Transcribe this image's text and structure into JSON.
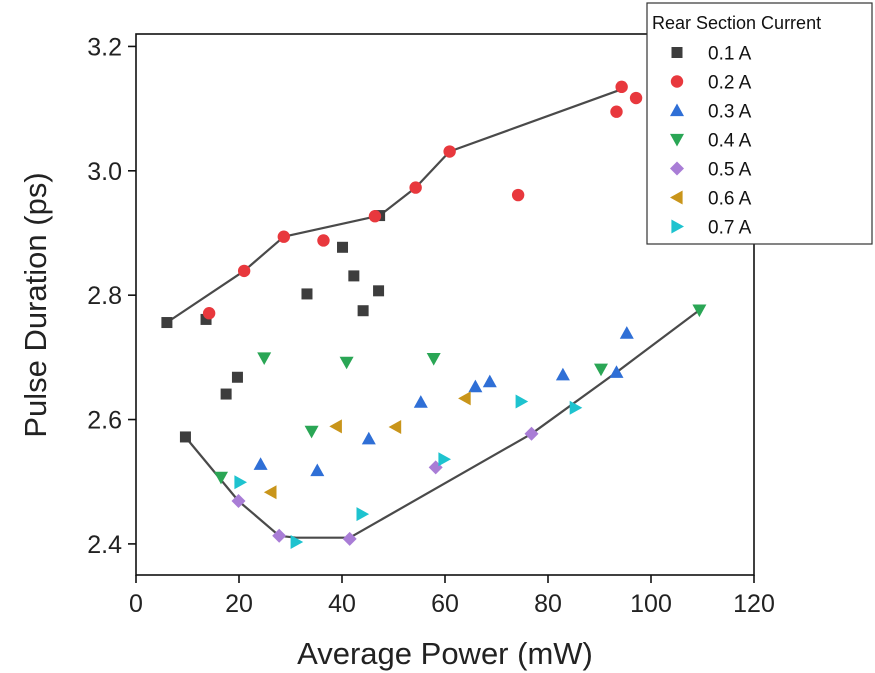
{
  "chart_data": {
    "type": "scatter",
    "xlabel": "Average Power (mW)",
    "ylabel": "Pulse Duration (ps)",
    "xlim": [
      0,
      120
    ],
    "ylim": [
      2.35,
      3.22
    ],
    "xticks": [
      0,
      20,
      40,
      60,
      80,
      100,
      120
    ],
    "xtick_labels": [
      "0",
      "20",
      "40",
      "60",
      "80",
      "100",
      "120"
    ],
    "yticks": [
      2.4,
      2.6,
      2.8,
      3.0,
      3.2
    ],
    "ytick_labels": [
      "2.4",
      "2.6",
      "2.8",
      "3.0",
      "3.2"
    ],
    "grid": false,
    "legend": {
      "title": "Rear Section Current",
      "placement": "top-right"
    },
    "series": [
      {
        "name": "0.1 A",
        "marker": "square",
        "color": "#3d3d3d",
        "points": [
          [
            6,
            2.756
          ],
          [
            13.6,
            2.761
          ],
          [
            17.5,
            2.641
          ],
          [
            19.7,
            2.668
          ],
          [
            9.6,
            2.572
          ],
          [
            33.2,
            2.802
          ],
          [
            40.1,
            2.877
          ],
          [
            42.3,
            2.831
          ],
          [
            44.1,
            2.775
          ],
          [
            47.1,
            2.807
          ],
          [
            47.3,
            2.928
          ]
        ]
      },
      {
        "name": "0.2 A",
        "marker": "circle",
        "color": "#e8383d",
        "points": [
          [
            14.2,
            2.771
          ],
          [
            21,
            2.839
          ],
          [
            28.7,
            2.894
          ],
          [
            36.4,
            2.888
          ],
          [
            46.4,
            2.927
          ],
          [
            54.3,
            2.973
          ],
          [
            60.9,
            3.031
          ],
          [
            74.2,
            2.961
          ],
          [
            93.3,
            3.095
          ],
          [
            94.3,
            3.135
          ],
          [
            97.1,
            3.117
          ]
        ]
      },
      {
        "name": "0.3 A",
        "marker": "triangle-up",
        "color": "#2f6fd6",
        "points": [
          [
            24.2,
            2.528
          ],
          [
            35.2,
            2.518
          ],
          [
            45.2,
            2.569
          ],
          [
            55.3,
            2.628
          ],
          [
            65.9,
            2.653
          ],
          [
            68.7,
            2.661
          ],
          [
            82.9,
            2.672
          ],
          [
            93.3,
            2.676
          ],
          [
            95.3,
            2.739
          ]
        ]
      },
      {
        "name": "0.4 A",
        "marker": "triangle-down",
        "color": "#2aa655",
        "points": [
          [
            16.5,
            2.507
          ],
          [
            24.9,
            2.699
          ],
          [
            34.1,
            2.581
          ],
          [
            40.9,
            2.692
          ],
          [
            57.8,
            2.698
          ],
          [
            90.3,
            2.681
          ],
          [
            109.4,
            2.776
          ]
        ]
      },
      {
        "name": "0.5 A",
        "marker": "diamond",
        "color": "#a97dd6",
        "points": [
          [
            19.9,
            2.469
          ],
          [
            27.8,
            2.413
          ],
          [
            41.5,
            2.408
          ],
          [
            58.2,
            2.523
          ],
          [
            76.8,
            2.577
          ]
        ]
      },
      {
        "name": "0.6 A",
        "marker": "triangle-left",
        "color": "#c9951a",
        "points": [
          [
            26.2,
            2.483
          ],
          [
            38.9,
            2.589
          ],
          [
            50.4,
            2.588
          ],
          [
            63.9,
            2.634
          ]
        ]
      },
      {
        "name": "0.7 A",
        "marker": "triangle-right",
        "color": "#1ec3cf",
        "points": [
          [
            20.2,
            2.499
          ],
          [
            31.1,
            2.403
          ],
          [
            43.9,
            2.448
          ],
          [
            59.8,
            2.536
          ],
          [
            74.8,
            2.629
          ],
          [
            85.3,
            2.619
          ]
        ]
      }
    ],
    "lines": [
      {
        "role": "upper-envelope",
        "color": "#4a4a4a",
        "points": [
          [
            6,
            2.756
          ],
          [
            21,
            2.839
          ],
          [
            28.7,
            2.894
          ],
          [
            47.3,
            2.928
          ],
          [
            54.3,
            2.973
          ],
          [
            60.9,
            3.031
          ],
          [
            94.3,
            3.131
          ]
        ]
      },
      {
        "role": "lower-envelope",
        "color": "#4a4a4a",
        "points": [
          [
            9.6,
            2.572
          ],
          [
            19.9,
            2.469
          ],
          [
            27.8,
            2.413
          ],
          [
            31.1,
            2.41
          ],
          [
            41.5,
            2.41
          ],
          [
            76.8,
            2.577
          ],
          [
            93.3,
            2.676
          ],
          [
            109.4,
            2.776
          ]
        ]
      }
    ]
  }
}
